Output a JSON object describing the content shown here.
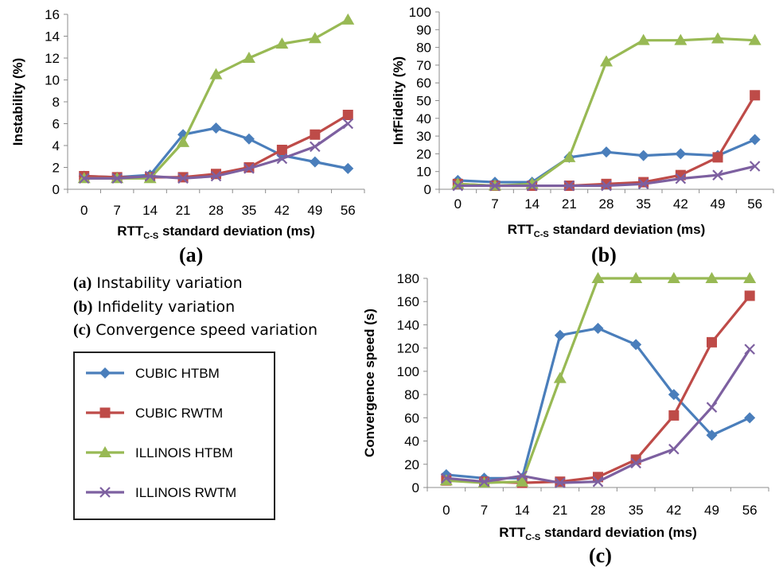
{
  "series_styles": [
    {
      "name": "CUBIC HTBM",
      "color": "#4a7ebb",
      "marker": "diamond"
    },
    {
      "name": "CUBIC RWTM",
      "color": "#be4b48",
      "marker": "square"
    },
    {
      "name": "ILLINOIS HTBM",
      "color": "#98b954",
      "marker": "triangle"
    },
    {
      "name": "ILLINOIS RWTM",
      "color": "#7d60a0",
      "marker": "cross"
    }
  ],
  "captions": [
    {
      "key": "(a)",
      "text": "Instability variation"
    },
    {
      "key": "(b)",
      "text": "Infidelity variation"
    },
    {
      "key": "(c)",
      "text": "Convergence speed variation"
    }
  ],
  "chart_data": [
    {
      "id": "a",
      "label": "(a)",
      "type": "line",
      "xlabel_main": "RTT",
      "xlabel_sub": "C-S",
      "xlabel_rest": " standard deviation (ms)",
      "ylabel": "Instability (%)",
      "categories": [
        "0",
        "7",
        "14",
        "21",
        "28",
        "35",
        "42",
        "49",
        "56"
      ],
      "ylim": [
        0,
        16
      ],
      "yticks": [
        "0",
        "2",
        "4",
        "6",
        "8",
        "10",
        "12",
        "14",
        "16"
      ],
      "grid": false,
      "series": [
        {
          "name": "CUBIC HTBM",
          "values": [
            1.2,
            1.1,
            1.3,
            5.0,
            5.6,
            4.6,
            3.1,
            2.5,
            1.9
          ]
        },
        {
          "name": "CUBIC RWTM",
          "values": [
            1.2,
            1.1,
            1.1,
            1.1,
            1.4,
            2.0,
            3.6,
            5.0,
            6.8
          ]
        },
        {
          "name": "ILLINOIS HTBM",
          "values": [
            1.0,
            1.0,
            1.0,
            4.3,
            10.5,
            12.0,
            13.3,
            13.8,
            15.5
          ]
        },
        {
          "name": "ILLINOIS RWTM",
          "values": [
            1.0,
            1.0,
            1.2,
            1.0,
            1.2,
            1.9,
            2.8,
            3.9,
            6.0
          ]
        }
      ]
    },
    {
      "id": "b",
      "label": "(b)",
      "type": "line",
      "xlabel_main": "RTT",
      "xlabel_sub": "C-S",
      "xlabel_rest": " standard deviation (ms)",
      "ylabel": "InfFidelity (%)",
      "categories": [
        "0",
        "7",
        "14",
        "21",
        "28",
        "35",
        "42",
        "49",
        "56"
      ],
      "ylim": [
        0,
        100
      ],
      "yticks": [
        "0",
        "10",
        "20",
        "30",
        "40",
        "50",
        "60",
        "70",
        "80",
        "90",
        "100"
      ],
      "grid": false,
      "series": [
        {
          "name": "CUBIC HTBM",
          "values": [
            5,
            4,
            4,
            18,
            21,
            19,
            20,
            19,
            28
          ]
        },
        {
          "name": "CUBIC RWTM",
          "values": [
            3,
            2,
            2,
            2,
            3,
            4,
            8,
            18,
            53
          ]
        },
        {
          "name": "ILLINOIS HTBM",
          "values": [
            3,
            2,
            3,
            18,
            72,
            84,
            84,
            85,
            84
          ]
        },
        {
          "name": "ILLINOIS RWTM",
          "values": [
            2,
            2,
            2,
            2,
            2,
            3,
            6,
            8,
            13
          ]
        }
      ]
    },
    {
      "id": "c",
      "label": "(c)",
      "type": "line",
      "xlabel_main": "RTT",
      "xlabel_sub": "C-S",
      "xlabel_rest": " standard deviation (ms)",
      "ylabel": "Convergence speed (s)",
      "categories": [
        "0",
        "7",
        "14",
        "21",
        "28",
        "35",
        "42",
        "49",
        "56"
      ],
      "ylim": [
        0,
        180
      ],
      "yticks": [
        "0",
        "20",
        "40",
        "60",
        "80",
        "100",
        "120",
        "140",
        "160",
        "180"
      ],
      "grid": false,
      "series": [
        {
          "name": "CUBIC HTBM",
          "values": [
            11,
            8,
            8,
            131,
            137,
            123,
            80,
            45,
            60
          ]
        },
        {
          "name": "CUBIC RWTM",
          "values": [
            6,
            5,
            4,
            5,
            9,
            24,
            62,
            125,
            165
          ]
        },
        {
          "name": "ILLINOIS HTBM",
          "values": [
            6,
            4,
            5,
            94,
            180,
            180,
            180,
            180,
            180
          ]
        },
        {
          "name": "ILLINOIS RWTM",
          "values": [
            8,
            5,
            10,
            4,
            5,
            21,
            33,
            69,
            119
          ]
        }
      ]
    }
  ]
}
